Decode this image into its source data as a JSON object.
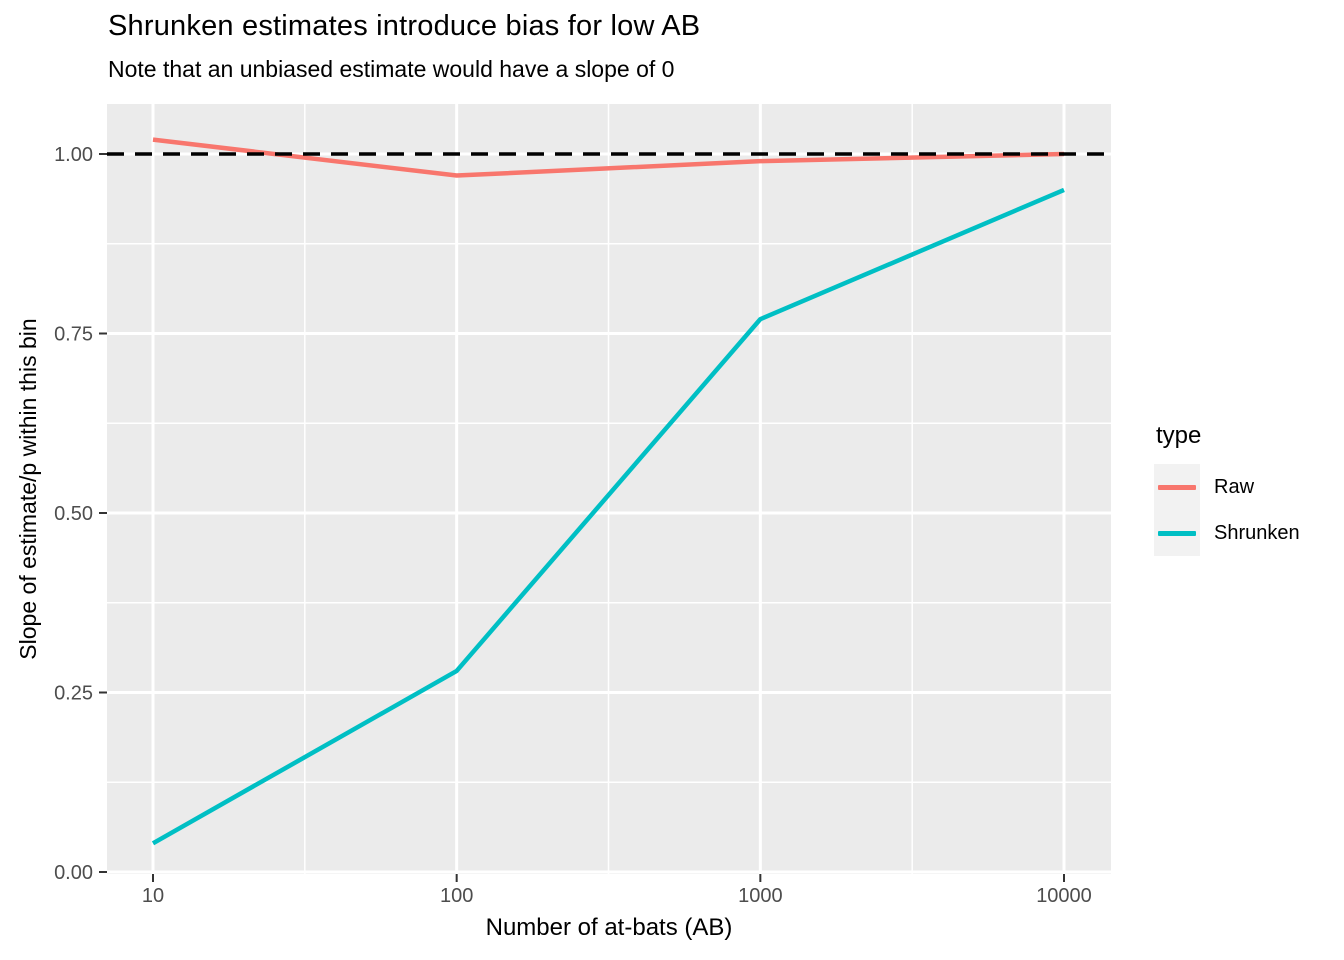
{
  "title": "Shrunken estimates introduce bias for low AB",
  "subtitle": "Note that an unbiased estimate would have a slope of 0",
  "chart_data": {
    "type": "line",
    "x_scale": "log10",
    "x": [
      10,
      100,
      1000,
      10000
    ],
    "series": [
      {
        "name": "Raw",
        "color": "#F8766D",
        "values": [
          1.02,
          0.97,
          0.99,
          1.0
        ]
      },
      {
        "name": "Shrunken",
        "color": "#00BFC4",
        "values": [
          0.04,
          0.28,
          0.77,
          0.95
        ]
      }
    ],
    "reference_line": {
      "y": 1.0,
      "style": "dashed",
      "color": "#000000"
    },
    "title": "Shrunken estimates introduce bias for low AB",
    "subtitle": "Note that an unbiased estimate would have a slope of 0",
    "xlabel": "Number of at-bats (AB)",
    "ylabel": "Slope of estimate/p within this bin",
    "x_tick_values": [
      10,
      100,
      1000,
      10000
    ],
    "x_tick_labels": [
      "10",
      "100",
      "1000",
      "10000"
    ],
    "x_minor_values": [
      31.623,
      316.23,
      3162.3
    ],
    "y_tick_values": [
      0.0,
      0.25,
      0.5,
      0.75,
      1.0
    ],
    "y_tick_labels": [
      "0.00",
      "0.25",
      "0.50",
      "0.75",
      "1.00"
    ],
    "y_minor_values": [
      0.125,
      0.375,
      0.625,
      0.875
    ],
    "ylim": [
      -0.02,
      1.07
    ],
    "grid": true,
    "legend": {
      "title": "type",
      "position": "right",
      "entries": [
        "Raw",
        "Shrunken"
      ]
    }
  },
  "colors": {
    "panel_background": "#EBEBEB",
    "grid_line": "#FFFFFF",
    "tick_mark": "#333333",
    "tick_label": "#4D4D4D",
    "legend_key_background": "#F2F2F2"
  }
}
